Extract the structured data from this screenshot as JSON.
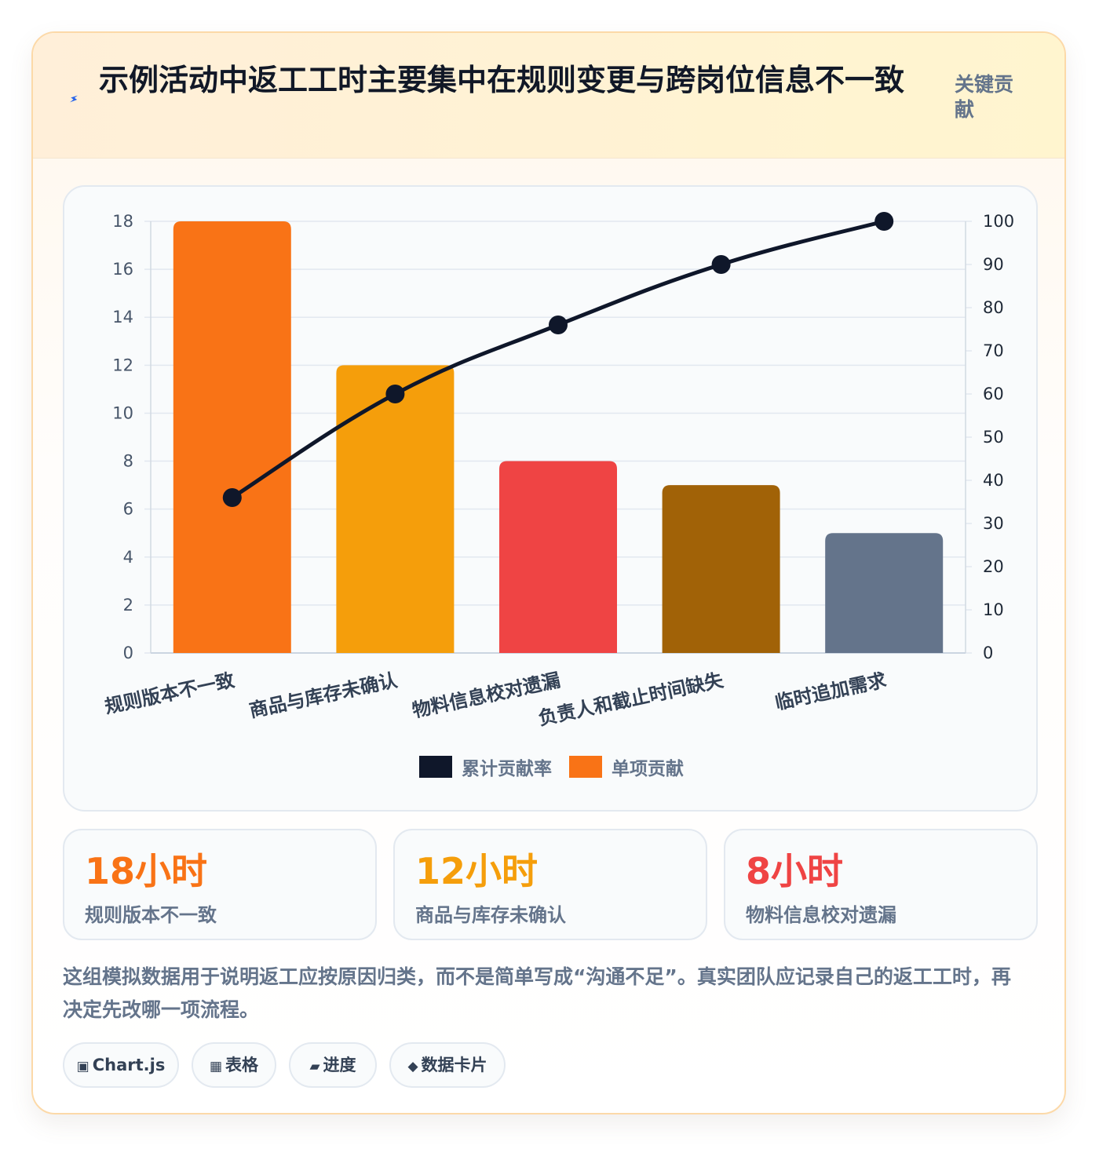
{
  "header": {
    "title": "示例活动中返工工时主要集中在规则变更与跨岗位信息不一致",
    "badge": "关键贡献"
  },
  "chart_data": {
    "type": "bar+line",
    "categories": [
      "规则版本不一致",
      "商品与库存未确认",
      "物料信息校对遗漏",
      "负责人和截止时间缺失",
      "临时追加需求"
    ],
    "series": [
      {
        "name": "单项贡献",
        "type": "bar",
        "axis": "left",
        "values": [
          18,
          12,
          8,
          7,
          5
        ],
        "colors": [
          "#f97316",
          "#f59e0b",
          "#ef4444",
          "#a16207",
          "#64748b"
        ]
      },
      {
        "name": "累计贡献率",
        "type": "line",
        "axis": "right",
        "values": [
          36,
          60,
          76,
          90,
          100
        ],
        "color": "#0f172a"
      }
    ],
    "y_left": {
      "min": 0,
      "max": 18,
      "step": 2
    },
    "y_right": {
      "min": 0,
      "max": 100,
      "step": 10
    },
    "legend": [
      {
        "label": "累计贡献率",
        "color": "#0f172a"
      },
      {
        "label": "单项贡献",
        "color": "#f97316"
      }
    ],
    "legend_position": "bottom",
    "grid": true
  },
  "stats": [
    {
      "value": "18小时",
      "label": "规则版本不一致",
      "color": "#f97316"
    },
    {
      "value": "12小时",
      "label": "商品与库存未确认",
      "color": "#f59e0b"
    },
    {
      "value": "8小时",
      "label": "物料信息校对遗漏",
      "color": "#ef4444"
    }
  ],
  "description": "这组模拟数据用于说明返工应按原因归类，而不是简单写成“沟通不足”。真实团队应记录自己的返工工时，再决定先改哪一项流程。",
  "tags": [
    {
      "icon": "▣",
      "icon_name": "chart-icon",
      "label": "Chart.js"
    },
    {
      "icon": "▦",
      "icon_name": "table-icon",
      "label": "表格"
    },
    {
      "icon": "▰",
      "icon_name": "progress-icon",
      "label": "进度"
    },
    {
      "icon": "◆",
      "icon_name": "data-card-icon",
      "label": "数据卡片"
    }
  ]
}
